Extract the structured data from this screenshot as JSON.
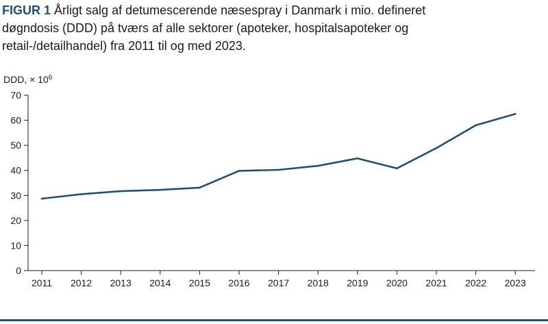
{
  "caption": {
    "label": "FIGUR 1",
    "text": "Årligt salg af detumescerende næsespray i Danmark i mio. defineret døgndosis (DDD) på tværs af alle sektorer (apoteker, hospitalsapoteker og retail-/detailhandel) fra 2011 til og med 2023."
  },
  "unit_label": {
    "base": "DDD, × 10",
    "exponent": "6"
  },
  "colors": {
    "line": "#1f4e79",
    "label_accent": "#1f4e79",
    "axis": "#1a1a1a"
  },
  "chart_data": {
    "type": "line",
    "categories": [
      "2011",
      "2012",
      "2013",
      "2014",
      "2015",
      "2016",
      "2017",
      "2018",
      "2019",
      "2020",
      "2021",
      "2022",
      "2023"
    ],
    "series": [
      {
        "values": [
          28.7,
          30.5,
          31.7,
          32.2,
          33.1,
          39.8,
          40.2,
          41.8,
          44.8,
          40.8,
          48.9,
          58.0,
          62.5
        ]
      }
    ],
    "yticks": [
      0,
      10,
      20,
      30,
      40,
      50,
      60,
      70
    ],
    "ylim": [
      0,
      70
    ],
    "ylabel": "DDD, × 10⁶",
    "xlabel": "",
    "grid": false,
    "legend": "none"
  }
}
